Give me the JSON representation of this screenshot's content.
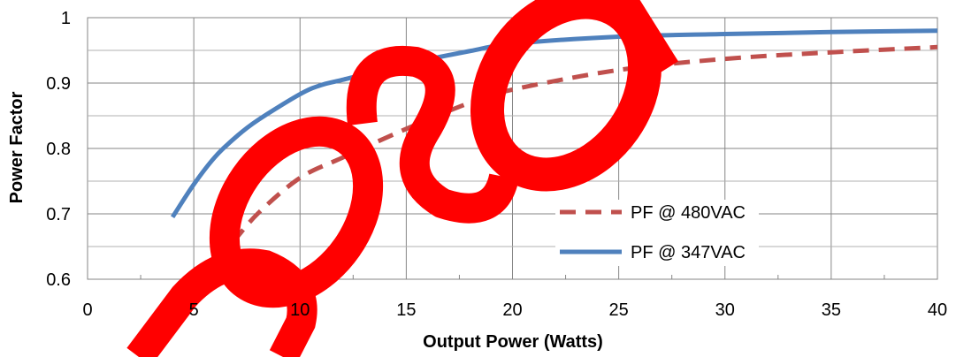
{
  "chart_data": {
    "type": "line",
    "xlabel": "Output Power (Watts)",
    "ylabel": "Power Factor",
    "xlim": [
      0,
      40
    ],
    "ylim": [
      0.6,
      1.0
    ],
    "x_ticks": [
      "0",
      "5",
      "10",
      "15",
      "20",
      "25",
      "30",
      "35",
      "40"
    ],
    "y_ticks": [
      "0.6",
      "0.7",
      "0.8",
      "0.9",
      "1"
    ],
    "grid": true,
    "legend_position": "lower-right",
    "series": [
      {
        "name": "PF @ 480VAC",
        "color": "#C0504D",
        "dash": "dashed",
        "x": [
          5.0,
          6.5,
          8.0,
          10.0,
          12.0,
          15.0,
          18.0,
          20.0,
          25.0,
          30.0,
          35.0,
          40.0
        ],
        "y": [
          0.607,
          0.645,
          0.7,
          0.755,
          0.786,
          0.83,
          0.87,
          0.89,
          0.92,
          0.937,
          0.947,
          0.955
        ]
      },
      {
        "name": "PF @ 347VAC",
        "color": "#4F81BD",
        "dash": "solid",
        "x": [
          4.0,
          5.0,
          6.0,
          7.0,
          8.0,
          10.0,
          11.0,
          12.0,
          15.0,
          18.0,
          20.0,
          25.0,
          30.0,
          35.0,
          40.0
        ],
        "y": [
          0.695,
          0.745,
          0.787,
          0.818,
          0.843,
          0.883,
          0.897,
          0.905,
          0.929,
          0.949,
          0.96,
          0.971,
          0.975,
          0.978,
          0.98
        ]
      }
    ]
  }
}
